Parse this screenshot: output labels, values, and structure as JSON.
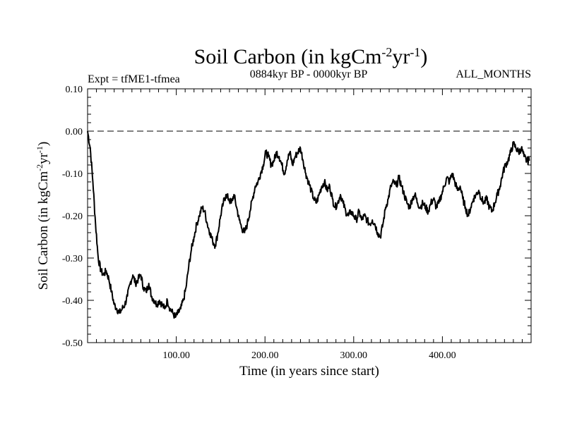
{
  "chart_data": {
    "type": "line",
    "title": {
      "base": "Soil Carbon (in kgCm",
      "sup1": "-2",
      "mid": "yr",
      "sup2": "-1",
      "end": ")"
    },
    "subtitle_left": "Expt = tfME1-tfmea",
    "subtitle_center": "0884kyr BP - 0000kyr BP",
    "subtitle_right": "ALL_MONTHS",
    "xlabel": "Time (in years since start)",
    "ylabel": {
      "base": "Soil Carbon (in kgCm",
      "sup1": "-2",
      "mid": "yr",
      "sup2": "-1",
      "end": ")"
    },
    "xlim": [
      0,
      500
    ],
    "ylim": [
      -0.5,
      0.1
    ],
    "xticks": [
      100,
      200,
      300,
      400
    ],
    "xtick_labels": [
      "100.00",
      "200.00",
      "300.00",
      "400.00"
    ],
    "yticks": [
      0.1,
      0.0,
      -0.1,
      -0.2,
      -0.3,
      -0.4,
      -0.5
    ],
    "ytick_labels": [
      "0.10",
      "0.00",
      "-0.10",
      "-0.20",
      "-0.30",
      "-0.40",
      "-0.50"
    ],
    "reference_line": 0.0,
    "series": [
      {
        "name": "Soil Carbon",
        "points": [
          [
            0,
            0.0
          ],
          [
            3,
            -0.04
          ],
          [
            6,
            -0.12
          ],
          [
            9,
            -0.22
          ],
          [
            12,
            -0.3
          ],
          [
            15,
            -0.33
          ],
          [
            18,
            -0.34
          ],
          [
            21,
            -0.33
          ],
          [
            24,
            -0.35
          ],
          [
            27,
            -0.38
          ],
          [
            30,
            -0.41
          ],
          [
            33,
            -0.42
          ],
          [
            36,
            -0.43
          ],
          [
            39,
            -0.42
          ],
          [
            42,
            -0.41
          ],
          [
            45,
            -0.39
          ],
          [
            48,
            -0.36
          ],
          [
            51,
            -0.34
          ],
          [
            54,
            -0.36
          ],
          [
            57,
            -0.35
          ],
          [
            60,
            -0.34
          ],
          [
            63,
            -0.37
          ],
          [
            66,
            -0.38
          ],
          [
            69,
            -0.36
          ],
          [
            72,
            -0.39
          ],
          [
            75,
            -0.4
          ],
          [
            78,
            -0.41
          ],
          [
            81,
            -0.4
          ],
          [
            84,
            -0.41
          ],
          [
            87,
            -0.42
          ],
          [
            90,
            -0.4
          ],
          [
            93,
            -0.42
          ],
          [
            96,
            -0.43
          ],
          [
            99,
            -0.44
          ],
          [
            102,
            -0.43
          ],
          [
            105,
            -0.42
          ],
          [
            108,
            -0.4
          ],
          [
            111,
            -0.37
          ],
          [
            114,
            -0.32
          ],
          [
            117,
            -0.28
          ],
          [
            120,
            -0.25
          ],
          [
            123,
            -0.22
          ],
          [
            126,
            -0.2
          ],
          [
            129,
            -0.18
          ],
          [
            132,
            -0.19
          ],
          [
            135,
            -0.22
          ],
          [
            138,
            -0.24
          ],
          [
            141,
            -0.26
          ],
          [
            144,
            -0.27
          ],
          [
            147,
            -0.24
          ],
          [
            150,
            -0.2
          ],
          [
            153,
            -0.17
          ],
          [
            156,
            -0.15
          ],
          [
            159,
            -0.16
          ],
          [
            162,
            -0.17
          ],
          [
            165,
            -0.15
          ],
          [
            168,
            -0.18
          ],
          [
            171,
            -0.21
          ],
          [
            174,
            -0.23
          ],
          [
            177,
            -0.24
          ],
          [
            180,
            -0.22
          ],
          [
            183,
            -0.19
          ],
          [
            186,
            -0.16
          ],
          [
            189,
            -0.13
          ],
          [
            192,
            -0.12
          ],
          [
            195,
            -0.1
          ],
          [
            198,
            -0.08
          ],
          [
            201,
            -0.05
          ],
          [
            204,
            -0.06
          ],
          [
            207,
            -0.08
          ],
          [
            210,
            -0.07
          ],
          [
            213,
            -0.05
          ],
          [
            216,
            -0.06
          ],
          [
            219,
            -0.08
          ],
          [
            222,
            -0.1
          ],
          [
            225,
            -0.07
          ],
          [
            228,
            -0.05
          ],
          [
            231,
            -0.08
          ],
          [
            234,
            -0.06
          ],
          [
            237,
            -0.05
          ],
          [
            240,
            -0.04
          ],
          [
            243,
            -0.07
          ],
          [
            246,
            -0.1
          ],
          [
            249,
            -0.12
          ],
          [
            252,
            -0.14
          ],
          [
            255,
            -0.16
          ],
          [
            258,
            -0.17
          ],
          [
            261,
            -0.15
          ],
          [
            264,
            -0.13
          ],
          [
            267,
            -0.12
          ],
          [
            270,
            -0.14
          ],
          [
            273,
            -0.13
          ],
          [
            276,
            -0.16
          ],
          [
            279,
            -0.18
          ],
          [
            282,
            -0.17
          ],
          [
            285,
            -0.15
          ],
          [
            288,
            -0.17
          ],
          [
            291,
            -0.19
          ],
          [
            294,
            -0.2
          ],
          [
            297,
            -0.19
          ],
          [
            300,
            -0.2
          ],
          [
            303,
            -0.21
          ],
          [
            306,
            -0.19
          ],
          [
            309,
            -0.21
          ],
          [
            312,
            -0.2
          ],
          [
            315,
            -0.21
          ],
          [
            318,
            -0.22
          ],
          [
            321,
            -0.21
          ],
          [
            324,
            -0.22
          ],
          [
            327,
            -0.24
          ],
          [
            330,
            -0.25
          ],
          [
            333,
            -0.22
          ],
          [
            336,
            -0.18
          ],
          [
            339,
            -0.16
          ],
          [
            342,
            -0.13
          ],
          [
            345,
            -0.12
          ],
          [
            348,
            -0.13
          ],
          [
            351,
            -0.11
          ],
          [
            354,
            -0.13
          ],
          [
            357,
            -0.15
          ],
          [
            360,
            -0.17
          ],
          [
            363,
            -0.18
          ],
          [
            366,
            -0.16
          ],
          [
            369,
            -0.15
          ],
          [
            372,
            -0.17
          ],
          [
            375,
            -0.18
          ],
          [
            378,
            -0.17
          ],
          [
            381,
            -0.18
          ],
          [
            384,
            -0.19
          ],
          [
            387,
            -0.17
          ],
          [
            390,
            -0.16
          ],
          [
            393,
            -0.18
          ],
          [
            396,
            -0.17
          ],
          [
            399,
            -0.15
          ],
          [
            402,
            -0.13
          ],
          [
            405,
            -0.11
          ],
          [
            408,
            -0.12
          ],
          [
            411,
            -0.1
          ],
          [
            414,
            -0.12
          ],
          [
            417,
            -0.14
          ],
          [
            420,
            -0.13
          ],
          [
            423,
            -0.16
          ],
          [
            426,
            -0.18
          ],
          [
            429,
            -0.2
          ],
          [
            432,
            -0.18
          ],
          [
            435,
            -0.16
          ],
          [
            438,
            -0.15
          ],
          [
            441,
            -0.14
          ],
          [
            444,
            -0.16
          ],
          [
            447,
            -0.17
          ],
          [
            450,
            -0.16
          ],
          [
            453,
            -0.18
          ],
          [
            456,
            -0.19
          ],
          [
            459,
            -0.17
          ],
          [
            462,
            -0.15
          ],
          [
            465,
            -0.13
          ],
          [
            468,
            -0.1
          ],
          [
            471,
            -0.08
          ],
          [
            474,
            -0.07
          ],
          [
            477,
            -0.05
          ],
          [
            480,
            -0.03
          ],
          [
            483,
            -0.04
          ],
          [
            486,
            -0.05
          ],
          [
            489,
            -0.04
          ],
          [
            492,
            -0.06
          ],
          [
            495,
            -0.07
          ],
          [
            498,
            -0.07
          ]
        ]
      }
    ]
  }
}
